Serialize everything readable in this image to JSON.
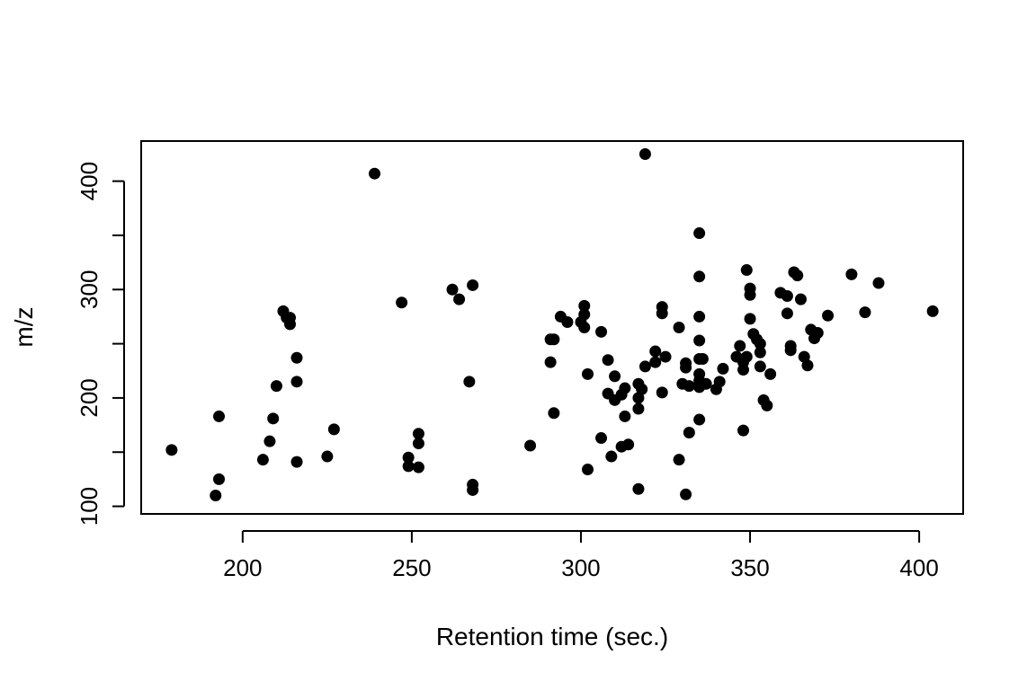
{
  "chart_data": {
    "type": "scatter",
    "title": "",
    "xlabel": "Retention time (sec.)",
    "ylabel": "m/z",
    "xlim": [
      170,
      413
    ],
    "ylim": [
      93,
      437
    ],
    "xticks": [
      200,
      250,
      300,
      350,
      400
    ],
    "yticks": [
      100,
      150,
      200,
      250,
      300,
      350,
      400
    ],
    "ytick_labels": [
      "100",
      "200",
      "300",
      "400"
    ],
    "grid": false,
    "legend": "none",
    "marker_color": "#000000",
    "points": [
      [
        179,
        152
      ],
      [
        192,
        110
      ],
      [
        193,
        183
      ],
      [
        193,
        125
      ],
      [
        206,
        143
      ],
      [
        208,
        160
      ],
      [
        209,
        181
      ],
      [
        210,
        211
      ],
      [
        212,
        280
      ],
      [
        213,
        274
      ],
      [
        214,
        274
      ],
      [
        214,
        268
      ],
      [
        216,
        237
      ],
      [
        216,
        215
      ],
      [
        216,
        141
      ],
      [
        225,
        146
      ],
      [
        227,
        171
      ],
      [
        239,
        407
      ],
      [
        247,
        288
      ],
      [
        249,
        145
      ],
      [
        249,
        137
      ],
      [
        252,
        167
      ],
      [
        252,
        158
      ],
      [
        252,
        136
      ],
      [
        262,
        300
      ],
      [
        264,
        291
      ],
      [
        267,
        215
      ],
      [
        268,
        304
      ],
      [
        268,
        120
      ],
      [
        268,
        115
      ],
      [
        285,
        156
      ],
      [
        291,
        254
      ],
      [
        291,
        233
      ],
      [
        292,
        254
      ],
      [
        292,
        186
      ],
      [
        294,
        275
      ],
      [
        296,
        270
      ],
      [
        300,
        270
      ],
      [
        301,
        285
      ],
      [
        301,
        277
      ],
      [
        301,
        265
      ],
      [
        302,
        134
      ],
      [
        302,
        222
      ],
      [
        306,
        261
      ],
      [
        306,
        163
      ],
      [
        308,
        235
      ],
      [
        308,
        204
      ],
      [
        309,
        146
      ],
      [
        310,
        220
      ],
      [
        310,
        198
      ],
      [
        312,
        203
      ],
      [
        312,
        155
      ],
      [
        313,
        209
      ],
      [
        313,
        183
      ],
      [
        314,
        157
      ],
      [
        317,
        213
      ],
      [
        317,
        200
      ],
      [
        317,
        190
      ],
      [
        317,
        116
      ],
      [
        318,
        208
      ],
      [
        319,
        229
      ],
      [
        319,
        425
      ],
      [
        322,
        243
      ],
      [
        322,
        233
      ],
      [
        324,
        284
      ],
      [
        324,
        278
      ],
      [
        324,
        205
      ],
      [
        325,
        238
      ],
      [
        329,
        265
      ],
      [
        329,
        143
      ],
      [
        330,
        213
      ],
      [
        331,
        232
      ],
      [
        331,
        228
      ],
      [
        331,
        111
      ],
      [
        332,
        211
      ],
      [
        332,
        168
      ],
      [
        335,
        352
      ],
      [
        335,
        312
      ],
      [
        335,
        275
      ],
      [
        335,
        253
      ],
      [
        335,
        236
      ],
      [
        335,
        222
      ],
      [
        335,
        216
      ],
      [
        335,
        210
      ],
      [
        335,
        180
      ],
      [
        336,
        236
      ],
      [
        337,
        213
      ],
      [
        340,
        208
      ],
      [
        341,
        215
      ],
      [
        342,
        227
      ],
      [
        346,
        238
      ],
      [
        347,
        248
      ],
      [
        348,
        233
      ],
      [
        348,
        226
      ],
      [
        348,
        170
      ],
      [
        349,
        318
      ],
      [
        349,
        238
      ],
      [
        350,
        301
      ],
      [
        350,
        295
      ],
      [
        350,
        273
      ],
      [
        351,
        259
      ],
      [
        352,
        254
      ],
      [
        353,
        250
      ],
      [
        353,
        242
      ],
      [
        353,
        229
      ],
      [
        354,
        198
      ],
      [
        355,
        193
      ],
      [
        356,
        222
      ],
      [
        359,
        297
      ],
      [
        361,
        294
      ],
      [
        361,
        278
      ],
      [
        362,
        248
      ],
      [
        362,
        244
      ],
      [
        363,
        316
      ],
      [
        364,
        313
      ],
      [
        365,
        291
      ],
      [
        366,
        238
      ],
      [
        367,
        230
      ],
      [
        368,
        263
      ],
      [
        369,
        255
      ],
      [
        370,
        260
      ],
      [
        373,
        276
      ],
      [
        380,
        314
      ],
      [
        384,
        279
      ],
      [
        388,
        306
      ],
      [
        404,
        280
      ]
    ]
  }
}
